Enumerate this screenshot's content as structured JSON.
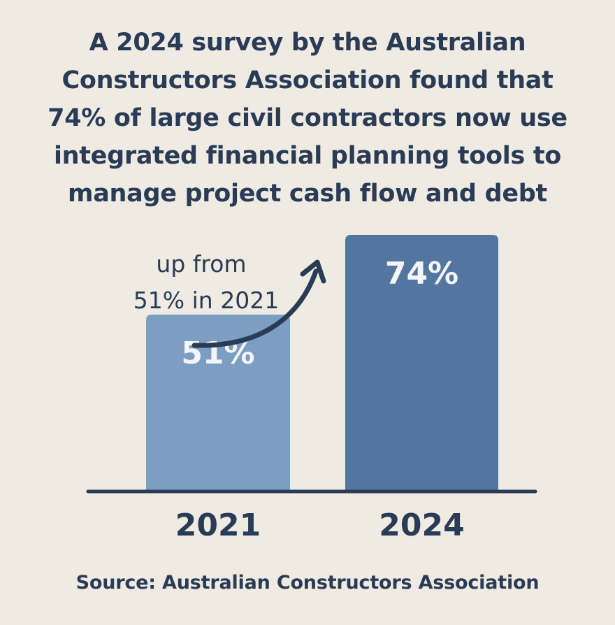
{
  "page": {
    "title": "A 2024 survey by the Australian Constructors Association found that 74% of large civil contractors now use integrated financial planning tools to manage project cash flow and debt",
    "title_lines": [
      "A 2024 survey by the Australian",
      "Constructors Association found that",
      "74% of large civil contractors now use",
      "integrated financial planning tools to",
      "manage project cash flow and debt"
    ],
    "source": "Source: Australian Constructors Association"
  },
  "chart_data": {
    "type": "bar",
    "categories": [
      "2021",
      "2024"
    ],
    "values": [
      51,
      74
    ],
    "value_labels": [
      "51%",
      "74%"
    ],
    "unit": "%",
    "ylim": [
      0,
      100
    ],
    "grid": false,
    "annotation": {
      "lines": [
        "up from",
        "51% in 2021"
      ],
      "arrow": "curved arrow pointing up-right toward the 2024 bar"
    },
    "colors": {
      "bar_2021": "#7c9ec3",
      "bar_2024": "#52769f",
      "axis": "#2a3b56",
      "text": "#2a3b56",
      "bar_label": "#f3f5f8",
      "background": "#efebe3"
    }
  }
}
